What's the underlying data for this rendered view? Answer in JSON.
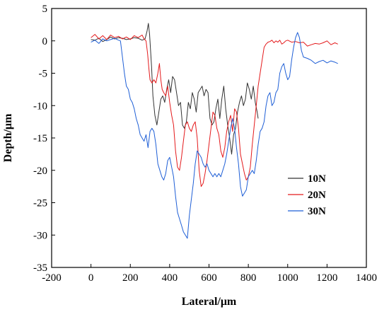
{
  "chart_data": {
    "type": "line",
    "title": "",
    "xlabel": "Lateral/μm",
    "ylabel": "Depth/μm",
    "xlim": [
      -200,
      1400
    ],
    "ylim": [
      -35,
      5
    ],
    "xticks": [
      -200,
      0,
      200,
      400,
      600,
      800,
      1000,
      1200,
      1400
    ],
    "yticks": [
      5,
      0,
      -5,
      -10,
      -15,
      -20,
      -25,
      -30,
      -35
    ],
    "grid": false,
    "legend_position": "lower-right",
    "series": [
      {
        "name": "10N",
        "color": "#333333",
        "x": [
          0,
          20,
          40,
          60,
          80,
          100,
          120,
          140,
          160,
          180,
          200,
          220,
          240,
          260,
          275,
          285,
          292,
          298,
          303,
          308,
          315,
          325,
          335,
          345,
          355,
          365,
          375,
          385,
          395,
          405,
          415,
          425,
          435,
          445,
          455,
          465,
          475,
          485,
          495,
          505,
          515,
          525,
          535,
          545,
          555,
          565,
          575,
          585,
          595,
          605,
          615,
          625,
          635,
          645,
          655,
          665,
          675,
          685,
          695,
          705,
          715,
          725,
          735,
          745,
          755,
          765,
          775,
          785,
          795,
          805,
          815,
          825,
          835,
          845,
          850
        ],
        "y": [
          0.2,
          0.1,
          0.4,
          -0.1,
          0.2,
          0.6,
          0.3,
          0.5,
          0.4,
          0.2,
          0.3,
          0.5,
          0.4,
          0.1,
          0.3,
          1.5,
          2.7,
          1.0,
          -1.5,
          -4.0,
          -8.5,
          -11.5,
          -13.0,
          -11.0,
          -9.0,
          -8.5,
          -9.5,
          -7.5,
          -6.0,
          -8.0,
          -5.5,
          -6.0,
          -8.0,
          -10.0,
          -9.5,
          -13.0,
          -13.5,
          -12.5,
          -9.5,
          -10.5,
          -8.0,
          -9.0,
          -11.0,
          -8.0,
          -7.5,
          -7.0,
          -8.5,
          -7.5,
          -8.0,
          -12.0,
          -13.0,
          -12.5,
          -10.5,
          -9.0,
          -12.0,
          -9.0,
          -7.0,
          -10.5,
          -13.0,
          -15.0,
          -17.5,
          -14.5,
          -13.5,
          -11.0,
          -9.5,
          -8.5,
          -10.0,
          -9.0,
          -6.5,
          -7.5,
          -9.0,
          -7.0,
          -9.5,
          -11.0,
          -12.0
        ]
      },
      {
        "name": "20N",
        "color": "#e41a1c",
        "x": [
          0,
          20,
          40,
          60,
          80,
          100,
          120,
          140,
          160,
          180,
          200,
          220,
          240,
          260,
          270,
          280,
          288,
          295,
          300,
          310,
          320,
          330,
          340,
          348,
          355,
          362,
          370,
          380,
          390,
          400,
          410,
          420,
          430,
          440,
          450,
          460,
          470,
          480,
          490,
          500,
          510,
          520,
          530,
          540,
          550,
          560,
          570,
          580,
          590,
          600,
          610,
          620,
          630,
          640,
          650,
          660,
          670,
          680,
          690,
          700,
          710,
          720,
          730,
          740,
          750,
          760,
          770,
          780,
          790,
          800,
          810,
          820,
          830,
          840,
          850,
          860,
          870,
          880,
          890,
          900,
          910,
          920,
          930,
          940,
          950,
          960,
          970,
          980,
          990,
          1000,
          1020,
          1040,
          1060,
          1080,
          1100,
          1120,
          1140,
          1160,
          1180,
          1200,
          1220,
          1240,
          1255
        ],
        "y": [
          0.5,
          1.0,
          0.3,
          0.8,
          0.2,
          0.9,
          0.5,
          0.7,
          0.3,
          0.6,
          0.2,
          0.8,
          0.5,
          0.9,
          0.3,
          0.0,
          -2.0,
          -4.5,
          -6.0,
          -6.5,
          -6.0,
          -6.5,
          -5.0,
          -3.5,
          -6.0,
          -7.5,
          -8.0,
          -8.5,
          -7.0,
          -9.5,
          -11.5,
          -13.0,
          -17.0,
          -19.5,
          -20.0,
          -18.0,
          -15.5,
          -13.0,
          -12.5,
          -13.5,
          -14.0,
          -13.0,
          -12.5,
          -15.0,
          -20.0,
          -22.5,
          -22.0,
          -20.5,
          -18.5,
          -16.0,
          -13.5,
          -11.0,
          -11.5,
          -13.5,
          -14.5,
          -17.0,
          -18.0,
          -16.5,
          -14.0,
          -12.5,
          -11.5,
          -14.0,
          -10.5,
          -11.0,
          -13.5,
          -17.5,
          -19.0,
          -20.5,
          -21.5,
          -21.0,
          -19.5,
          -16.0,
          -13.0,
          -10.0,
          -7.0,
          -5.0,
          -3.0,
          -1.0,
          -0.5,
          -0.2,
          -0.1,
          0.1,
          -0.3,
          0.0,
          -0.2,
          0.1,
          -0.5,
          -0.3,
          0.0,
          0.1,
          -0.2,
          -0.1,
          -0.3,
          -0.2,
          -0.8,
          -0.6,
          -0.4,
          -0.5,
          -0.3,
          0.0,
          -0.6,
          -0.3,
          -0.5
        ]
      },
      {
        "name": "30N",
        "color": "#1f5fd6",
        "x": [
          0,
          20,
          40,
          60,
          80,
          100,
          120,
          140,
          150,
          160,
          170,
          180,
          190,
          200,
          210,
          220,
          230,
          240,
          250,
          260,
          270,
          280,
          290,
          300,
          310,
          320,
          330,
          340,
          350,
          360,
          370,
          380,
          390,
          400,
          410,
          420,
          430,
          440,
          450,
          460,
          470,
          480,
          490,
          500,
          510,
          520,
          530,
          540,
          550,
          560,
          570,
          580,
          590,
          600,
          610,
          620,
          630,
          640,
          650,
          660,
          670,
          680,
          690,
          700,
          710,
          720,
          730,
          740,
          750,
          760,
          770,
          780,
          790,
          800,
          810,
          820,
          830,
          840,
          850,
          860,
          870,
          880,
          890,
          900,
          910,
          920,
          930,
          940,
          950,
          960,
          970,
          980,
          990,
          1000,
          1010,
          1020,
          1030,
          1040,
          1050,
          1060,
          1070,
          1080,
          1100,
          1120,
          1140,
          1160,
          1180,
          1200,
          1220,
          1240,
          1255
        ],
        "y": [
          -0.2,
          0.1,
          -0.4,
          0.3,
          0.0,
          0.2,
          0.4,
          0.1,
          0.0,
          -2.5,
          -5.0,
          -7.0,
          -7.5,
          -9.0,
          -9.5,
          -10.5,
          -12.0,
          -13.0,
          -14.5,
          -15.0,
          -15.5,
          -14.5,
          -16.5,
          -14.0,
          -13.5,
          -14.0,
          -16.0,
          -19.0,
          -20.0,
          -21.0,
          -21.5,
          -20.5,
          -18.5,
          -18.0,
          -19.5,
          -21.0,
          -24.0,
          -26.5,
          -27.5,
          -28.5,
          -29.5,
          -30.0,
          -30.5,
          -27.0,
          -24.5,
          -22.0,
          -19.0,
          -17.0,
          -17.5,
          -18.0,
          -19.0,
          -19.5,
          -19.0,
          -20.0,
          -20.5,
          -21.0,
          -20.5,
          -21.0,
          -20.5,
          -21.0,
          -20.0,
          -19.0,
          -17.5,
          -15.5,
          -13.5,
          -12.0,
          -13.5,
          -16.5,
          -19.0,
          -22.5,
          -24.0,
          -23.5,
          -23.0,
          -21.0,
          -20.5,
          -20.0,
          -20.5,
          -18.5,
          -16.0,
          -14.0,
          -13.5,
          -12.5,
          -10.0,
          -8.5,
          -8.0,
          -10.0,
          -9.5,
          -8.0,
          -7.5,
          -5.0,
          -4.0,
          -3.5,
          -5.0,
          -6.0,
          -5.5,
          -3.0,
          -1.0,
          0.5,
          1.3,
          0.5,
          -1.5,
          -2.5,
          -2.7,
          -3.0,
          -3.5,
          -3.2,
          -3.0,
          -3.4,
          -3.1,
          -3.3,
          -3.5
        ]
      }
    ]
  }
}
